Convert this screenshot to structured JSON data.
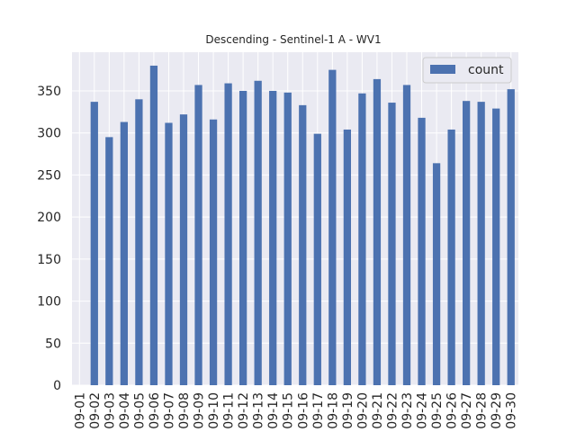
{
  "chart_data": {
    "type": "bar",
    "title": "Descending - Sentinel-1 A - WV1",
    "xlabel": "",
    "ylabel": "",
    "categories": [
      "09-01",
      "09-02",
      "09-03",
      "09-04",
      "09-05",
      "09-06",
      "09-07",
      "09-08",
      "09-09",
      "09-10",
      "09-11",
      "09-12",
      "09-13",
      "09-14",
      "09-15",
      "09-16",
      "09-17",
      "09-18",
      "09-19",
      "09-20",
      "09-21",
      "09-22",
      "09-23",
      "09-24",
      "09-25",
      "09-26",
      "09-27",
      "09-28",
      "09-29",
      "09-30"
    ],
    "series": [
      {
        "name": "count",
        "color": "#4c72b0",
        "values": [
          0,
          337,
          295,
          313,
          340,
          380,
          312,
          322,
          357,
          316,
          359,
          350,
          362,
          350,
          348,
          333,
          299,
          375,
          304,
          347,
          364,
          336,
          357,
          318,
          264,
          304,
          338,
          337,
          329,
          352
        ]
      }
    ],
    "ylim": [
      0,
      396
    ],
    "yticks": [
      0,
      50,
      100,
      150,
      200,
      250,
      300,
      350
    ],
    "grid": true,
    "legend_position": "top-right",
    "background_color": "#eaeaf2"
  }
}
